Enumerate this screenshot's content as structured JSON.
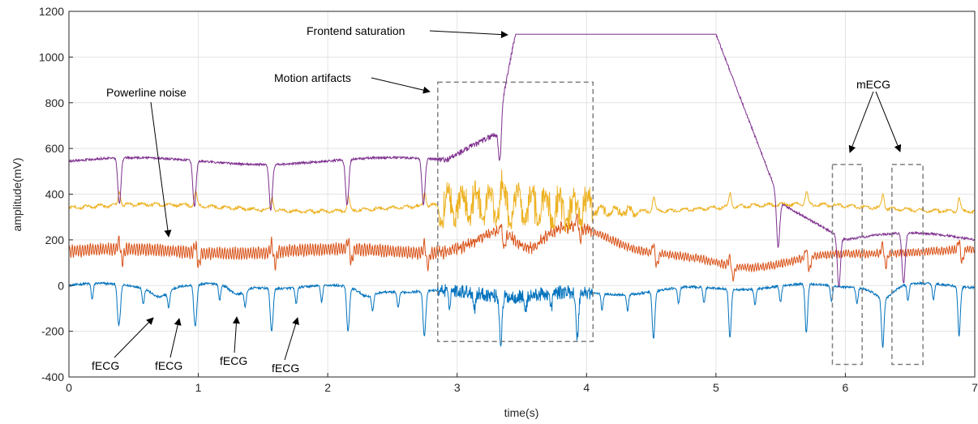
{
  "chart_data": {
    "type": "line",
    "xlabel": "time(s)",
    "ylabel": "amplitude(mV)",
    "xlim": [
      0,
      7
    ],
    "ylim": [
      -400,
      1200
    ],
    "xticks": [
      "0",
      "1",
      "2",
      "3",
      "4",
      "5",
      "6",
      "7"
    ],
    "yticks": [
      "-400",
      "-200",
      "0",
      "200",
      "400",
      "600",
      "800",
      "1000",
      "1200"
    ],
    "grid": true,
    "series": [
      {
        "color": "#0072BD",
        "baseline": 0,
        "profile": "blue"
      },
      {
        "color": "#D95319",
        "baseline": 150,
        "profile": "orange"
      },
      {
        "color": "#EDB120",
        "baseline": 340,
        "profile": "yellow"
      },
      {
        "color": "#7E2F8E",
        "baseline": 540,
        "saturation_level": 1100,
        "profile": "purple"
      }
    ],
    "annotations": {
      "frontend_saturation": "Frontend saturation",
      "motion_artifacts": "Motion artifacts",
      "powerline_noise": "Powerline noise",
      "mecg": "mECG",
      "fecg": [
        "fECG",
        "fECG",
        "fECG",
        "fECG"
      ]
    },
    "regions": {
      "motion_artifacts": {
        "x": [
          2.85,
          4.05
        ],
        "y": [
          -245,
          890
        ]
      },
      "mecg_1": {
        "x": [
          5.9,
          6.13
        ],
        "y": [
          -345,
          530
        ]
      },
      "mecg_2": {
        "x": [
          6.36,
          6.6
        ],
        "y": [
          -345,
          530
        ]
      }
    }
  }
}
